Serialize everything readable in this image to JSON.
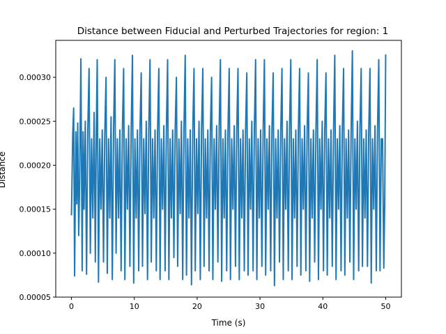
{
  "chart_data": {
    "type": "line",
    "title": "Distance between Fiducial and Perturbed Trajectories for region: 1",
    "xlabel": "Time (s)",
    "ylabel": "Distance",
    "xlim": [
      -2.5,
      52.5
    ],
    "ylim": [
      5e-05,
      0.000342
    ],
    "x_ticks": [
      0,
      10,
      20,
      30,
      40,
      50
    ],
    "x_tick_labels": [
      "0",
      "10",
      "20",
      "30",
      "40",
      "50"
    ],
    "y_ticks": [
      5e-05,
      0.0001,
      0.00015,
      0.0002,
      0.00025,
      0.0003
    ],
    "y_tick_labels": [
      "0.00005",
      "0.00010",
      "0.00015",
      "0.00020",
      "0.00025",
      "0.00030"
    ],
    "grid": false,
    "series": [
      {
        "color": "#1f77b4",
        "x": [
          0.0,
          0.2,
          0.35,
          0.5,
          0.7,
          0.85,
          1.0,
          1.15,
          1.3,
          1.5,
          1.7,
          1.85,
          2.0,
          2.2,
          2.4,
          2.6,
          2.8,
          3.0,
          3.2,
          3.4,
          3.6,
          3.8,
          3.95,
          4.1,
          4.3,
          4.5,
          4.7,
          4.9,
          5.1,
          5.3,
          5.5,
          5.7,
          5.9,
          6.1,
          6.3,
          6.5,
          6.7,
          6.9,
          7.1,
          7.3,
          7.5,
          7.7,
          7.9,
          8.1,
          8.3,
          8.5,
          8.7,
          8.9,
          9.1,
          9.3,
          9.5,
          9.7,
          9.9,
          10.1,
          10.3,
          10.5,
          10.7,
          10.9,
          11.1,
          11.3,
          11.5,
          11.7,
          11.9,
          12.1,
          12.3,
          12.5,
          12.7,
          12.9,
          13.1,
          13.3,
          13.5,
          13.7,
          13.9,
          14.1,
          14.3,
          14.5,
          14.7,
          14.9,
          15.1,
          15.3,
          15.5,
          15.7,
          15.9,
          16.1,
          16.3,
          16.5,
          16.7,
          16.9,
          17.1,
          17.3,
          17.5,
          17.7,
          17.9,
          18.1,
          18.3,
          18.5,
          18.7,
          18.9,
          19.1,
          19.3,
          19.5,
          19.7,
          19.9,
          20.1,
          20.3,
          20.5,
          20.7,
          20.9,
          21.1,
          21.3,
          21.5,
          21.7,
          21.9,
          22.1,
          22.3,
          22.5,
          22.7,
          22.9,
          23.1,
          23.3,
          23.5,
          23.7,
          23.9,
          24.1,
          24.3,
          24.5,
          24.7,
          24.9,
          25.1,
          25.3,
          25.5,
          25.7,
          25.9,
          26.1,
          26.3,
          26.5,
          26.7,
          26.9,
          27.1,
          27.3,
          27.5,
          27.7,
          27.9,
          28.1,
          28.3,
          28.5,
          28.7,
          28.9,
          29.1,
          29.3,
          29.5,
          29.7,
          29.9,
          30.1,
          30.3,
          30.5,
          30.7,
          30.9,
          31.1,
          31.3,
          31.5,
          31.7,
          31.9,
          32.1,
          32.3,
          32.5,
          32.7,
          32.9,
          33.1,
          33.3,
          33.5,
          33.7,
          33.9,
          34.1,
          34.3,
          34.5,
          34.7,
          34.9,
          35.1,
          35.3,
          35.5,
          35.7,
          35.9,
          36.1,
          36.3,
          36.5,
          36.7,
          36.9,
          37.1,
          37.3,
          37.5,
          37.7,
          37.9,
          38.1,
          38.3,
          38.5,
          38.7,
          38.9,
          39.1,
          39.3,
          39.5,
          39.7,
          39.9,
          40.1,
          40.3,
          40.5,
          40.7,
          40.9,
          41.1,
          41.3,
          41.5,
          41.7,
          41.9,
          42.1,
          42.3,
          42.5,
          42.7,
          42.9,
          43.1,
          43.3,
          43.5,
          43.7,
          43.9,
          44.1,
          44.3,
          44.5,
          44.7,
          44.9,
          45.1,
          45.3,
          45.5,
          45.7,
          45.9,
          46.1,
          46.3,
          46.5,
          46.7,
          46.9,
          47.1,
          47.3,
          47.5,
          47.7,
          47.9,
          48.1,
          48.3,
          48.5,
          48.7,
          48.9,
          49.1,
          49.3,
          49.5,
          49.7,
          49.85,
          50.0
        ],
        "y": [
          0.000143,
          0.000235,
          0.000265,
          7.4e-05,
          0.000238,
          0.000156,
          0.000248,
          0.00012,
          0.00018,
          0.000321,
          8e-05,
          0.000238,
          0.00015,
          0.00025,
          7.6e-05,
          0.00024,
          0.00031,
          0.0001,
          0.00023,
          0.00014,
          0.00026,
          9e-05,
          0.00024,
          0.00032,
          6.7e-05,
          0.00023,
          0.00015,
          0.00024,
          9e-05,
          0.000235,
          0.0003,
          7.7e-05,
          0.00023,
          0.00014,
          0.000255,
          7e-05,
          0.00024,
          0.00032,
          0.0001,
          0.00023,
          0.00014,
          0.00024,
          8e-05,
          0.000238,
          0.00031,
          7e-05,
          0.00023,
          0.00015,
          0.000245,
          8.5e-05,
          0.000238,
          0.000325,
          6.6e-05,
          0.00023,
          0.00014,
          0.00024,
          8e-05,
          0.00024,
          0.000305,
          8.5e-05,
          0.00023,
          0.000145,
          0.00025,
          7e-05,
          0.00024,
          0.00032,
          9e-05,
          0.00023,
          0.00014,
          0.00024,
          8e-05,
          0.000238,
          0.00031,
          7e-05,
          0.00023,
          0.00015,
          0.000245,
          8e-05,
          0.000238,
          0.00032,
          7e-05,
          0.00023,
          0.00014,
          0.00024,
          9.5e-05,
          0.00024,
          0.0003,
          8.5e-05,
          0.00023,
          0.000145,
          0.00025,
          7e-05,
          0.00024,
          0.000325,
          7.5e-05,
          0.00023,
          0.00014,
          0.00024,
          6.4e-05,
          0.000238,
          0.00031,
          8e-05,
          0.00023,
          0.000145,
          0.00025,
          7e-05,
          0.00024,
          0.00031,
          8.5e-05,
          0.00023,
          0.00014,
          0.00024,
          8e-05,
          0.000238,
          0.0003,
          7e-05,
          0.00023,
          0.00015,
          0.000245,
          9e-05,
          0.00024,
          0.00032,
          6.8e-05,
          0.00023,
          0.00014,
          0.00024,
          8e-05,
          0.000238,
          0.00031,
          7e-05,
          0.00023,
          0.00015,
          0.000245,
          8.5e-05,
          0.00024,
          0.00031,
          7e-05,
          0.00023,
          0.00014,
          0.00024,
          8e-05,
          0.000238,
          0.000305,
          7.5e-05,
          0.00023,
          0.00015,
          0.00025,
          8e-05,
          0.00024,
          0.00032,
          7e-05,
          0.00023,
          0.00014,
          0.00024,
          8.5e-05,
          0.000238,
          0.00032,
          7.5e-05,
          0.00023,
          0.00015,
          0.000245,
          8e-05,
          0.00024,
          0.000305,
          6.3e-05,
          0.00023,
          0.00014,
          0.00024,
          9e-05,
          0.000238,
          0.00031,
          7e-05,
          0.00023,
          0.00015,
          0.00025,
          8e-05,
          0.00024,
          0.00032,
          7e-05,
          0.00023,
          0.00014,
          0.00024,
          8.5e-05,
          0.000238,
          0.00031,
          7.5e-05,
          0.00023,
          0.00015,
          0.000245,
          8e-05,
          0.00024,
          0.000305,
          6.8e-05,
          0.00023,
          0.00014,
          0.00024,
          9e-05,
          0.000238,
          0.00032,
          7e-05,
          0.00023,
          0.00015,
          0.00025,
          8e-05,
          0.00024,
          0.000305,
          7.5e-05,
          0.00023,
          0.00014,
          0.00024,
          8.5e-05,
          0.000238,
          0.000325,
          7e-05,
          0.00023,
          0.00015,
          0.000245,
          8e-05,
          0.00024,
          0.00031,
          7.5e-05,
          0.00023,
          0.00014,
          0.00024,
          9e-05,
          0.000238,
          0.00033,
          7e-05,
          0.00023,
          0.00015,
          0.00025,
          8e-05,
          0.00024,
          0.00031,
          8.5e-05,
          0.00023,
          0.00014,
          0.00024,
          8.5e-05,
          0.000238,
          0.00031,
          6.6e-05,
          0.00023,
          0.00015,
          0.000245,
          8e-05,
          0.00024,
          0.00032,
          8e-05,
          0.00023,
          0.00023,
          8.3e-05,
          0.00016,
          0.000326
        ]
      }
    ]
  }
}
